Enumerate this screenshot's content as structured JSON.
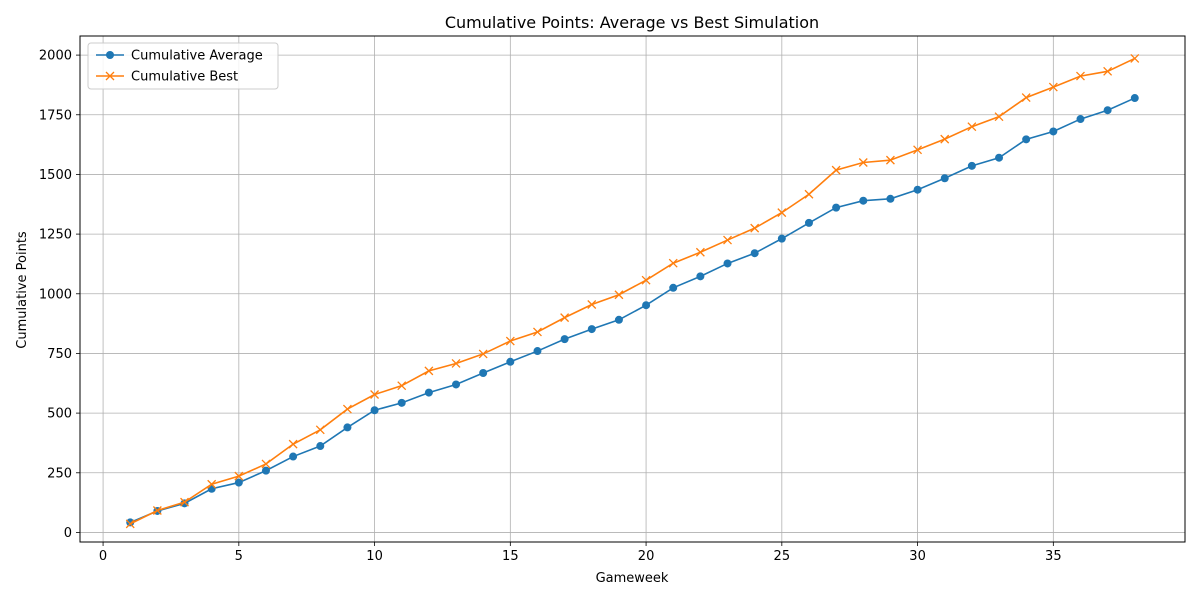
{
  "chart_data": {
    "type": "line",
    "title": "Cumulative Points: Average vs Best Simulation",
    "xlabel": "Gameweek",
    "ylabel": "Cumulative Points",
    "xlim": [
      -0.85,
      39.85
    ],
    "ylim": [
      -40,
      2080
    ],
    "xticks": [
      0,
      5,
      10,
      15,
      20,
      25,
      30,
      35
    ],
    "yticks": [
      0,
      250,
      500,
      750,
      1000,
      1250,
      1500,
      1750,
      2000
    ],
    "grid": true,
    "legend": "top-left",
    "x": [
      1,
      2,
      3,
      4,
      5,
      6,
      7,
      8,
      9,
      10,
      11,
      12,
      13,
      14,
      15,
      16,
      17,
      18,
      19,
      20,
      21,
      22,
      23,
      24,
      25,
      26,
      27,
      28,
      29,
      30,
      31,
      32,
      33,
      34,
      35,
      36,
      37,
      38
    ],
    "series": [
      {
        "name": "Cumulative Average",
        "color": "#1f77b4",
        "marker": "circle",
        "values": [
          42,
          90,
          122,
          183,
          209,
          259,
          318,
          362,
          440,
          512,
          543,
          586,
          620,
          668,
          715,
          760,
          810,
          852,
          891,
          952,
          1025,
          1073,
          1127,
          1170,
          1231,
          1297,
          1361,
          1390,
          1398,
          1436,
          1484,
          1536,
          1570,
          1647,
          1680,
          1732,
          1769,
          1820
        ]
      },
      {
        "name": "Cumulative Best",
        "color": "#ff7f0e",
        "marker": "x",
        "values": [
          36,
          92,
          127,
          202,
          236,
          287,
          370,
          430,
          517,
          578,
          615,
          677,
          708,
          748,
          802,
          840,
          900,
          955,
          996,
          1057,
          1128,
          1174,
          1225,
          1275,
          1340,
          1417,
          1518,
          1550,
          1560,
          1603,
          1648,
          1700,
          1742,
          1822,
          1866,
          1912,
          1932,
          1986
        ]
      }
    ]
  }
}
